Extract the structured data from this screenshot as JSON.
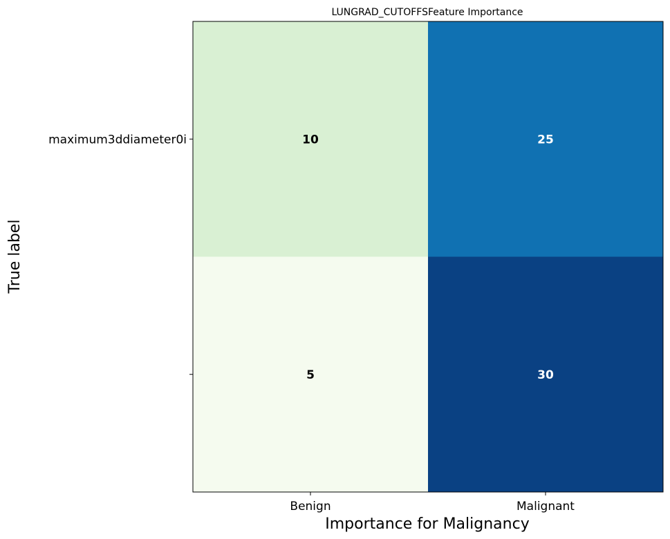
{
  "chart_data": {
    "type": "heatmap",
    "title": "LUNGRAD_CUTOFFSFeature Importance",
    "xlabel": "Importance for Malignancy",
    "ylabel": "True label",
    "x_categories": [
      "Benign",
      "Malignant"
    ],
    "y_categories": [
      "maximum3ddiameter0i",
      ""
    ],
    "values": [
      [
        10,
        25
      ],
      [
        5,
        30
      ]
    ],
    "cell_colors": [
      [
        "#d9f0d3",
        "#1071b2"
      ],
      [
        "#f5fbef",
        "#0a4183"
      ]
    ],
    "text_colors": [
      [
        "#000000",
        "#ffffff"
      ],
      [
        "#000000",
        "#ffffff"
      ]
    ],
    "colormap": "GnBu",
    "grid": false
  }
}
